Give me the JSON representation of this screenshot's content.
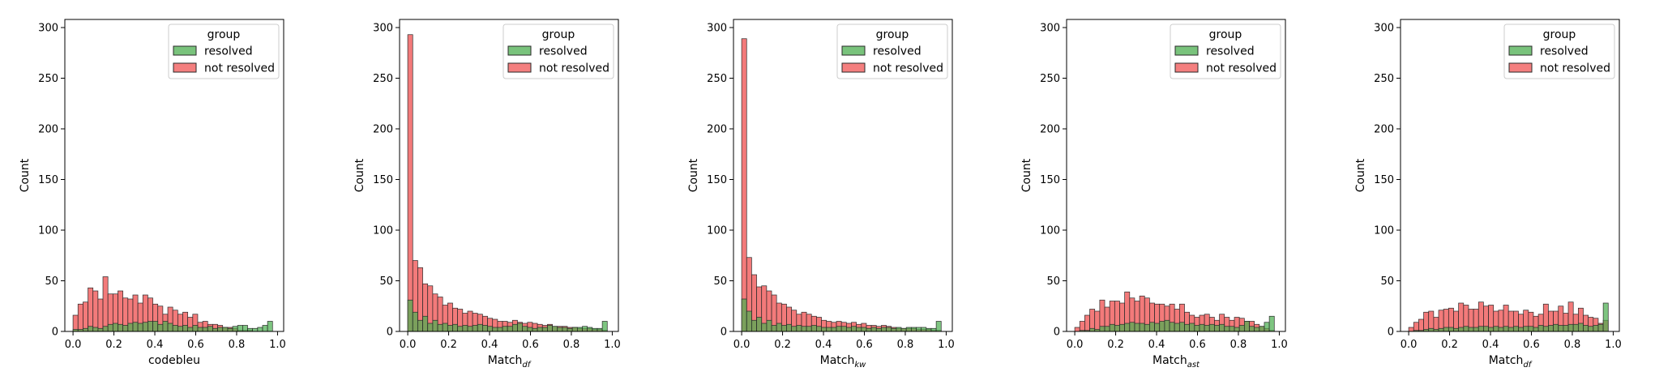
{
  "colors": {
    "resolved": "#4caf50",
    "not_resolved": "#f05454",
    "edge": "#2a2a2a"
  },
  "chart_data": [
    {
      "type": "histogram",
      "xlabel": "codebleu",
      "xlabel_sub": "",
      "ylabel": "Count",
      "xlim": [
        -0.04,
        1.03
      ],
      "ylim": [
        0,
        308
      ],
      "x_ticks": [
        0.0,
        0.2,
        0.4,
        0.6,
        0.8,
        1.0
      ],
      "x_tick_labels": [
        "0.0",
        "0.2",
        "0.4",
        "0.6",
        "0.8",
        "1.0"
      ],
      "y_ticks": [
        0,
        50,
        100,
        150,
        200,
        250,
        300
      ],
      "y_tick_labels": [
        "0",
        "50",
        "100",
        "150",
        "200",
        "250",
        "300"
      ],
      "bin_start": 0.0,
      "bin_width": 0.02439,
      "legend": {
        "title": "group",
        "placement": "top-right",
        "labels": [
          "resolved",
          "not resolved"
        ]
      },
      "series": [
        {
          "name": "not resolved",
          "key": "not_resolved",
          "values": [
            16,
            27,
            29,
            43,
            40,
            32,
            54,
            37,
            37,
            40,
            33,
            32,
            36,
            28,
            36,
            33,
            27,
            25,
            17,
            24,
            21,
            17,
            19,
            14,
            17,
            9,
            10,
            7,
            7,
            6,
            4,
            4,
            3,
            1,
            1,
            1,
            0,
            0,
            0,
            0
          ]
        },
        {
          "name": "resolved",
          "key": "resolved",
          "values": [
            2,
            2,
            3,
            5,
            4,
            3,
            5,
            7,
            8,
            7,
            6,
            8,
            9,
            8,
            9,
            10,
            10,
            7,
            10,
            8,
            6,
            5,
            6,
            4,
            6,
            4,
            4,
            5,
            3,
            4,
            4,
            3,
            5,
            6,
            6,
            3,
            3,
            4,
            6,
            10
          ]
        }
      ]
    },
    {
      "type": "histogram",
      "xlabel": "Match",
      "xlabel_sub": "df",
      "ylabel": "Count",
      "xlim": [
        -0.04,
        1.03
      ],
      "ylim": [
        0,
        308
      ],
      "x_ticks": [
        0.0,
        0.2,
        0.4,
        0.6,
        0.8,
        1.0
      ],
      "x_tick_labels": [
        "0.0",
        "0.2",
        "0.4",
        "0.6",
        "0.8",
        "1.0"
      ],
      "y_ticks": [
        0,
        50,
        100,
        150,
        200,
        250,
        300
      ],
      "y_tick_labels": [
        "0",
        "50",
        "100",
        "150",
        "200",
        "250",
        "300"
      ],
      "bin_start": 0.0,
      "bin_width": 0.02439,
      "legend": {
        "title": "group",
        "placement": "top-right",
        "labels": [
          "resolved",
          "not resolved"
        ]
      },
      "series": [
        {
          "name": "not resolved",
          "key": "not_resolved",
          "values": [
            293,
            70,
            63,
            47,
            45,
            37,
            34,
            26,
            28,
            23,
            22,
            18,
            20,
            18,
            17,
            15,
            13,
            12,
            10,
            10,
            9,
            11,
            9,
            8,
            9,
            8,
            7,
            6,
            7,
            5,
            5,
            5,
            4,
            4,
            3,
            3,
            3,
            2,
            2,
            1
          ]
        },
        {
          "name": "resolved",
          "key": "resolved",
          "values": [
            31,
            19,
            11,
            15,
            8,
            11,
            7,
            8,
            6,
            7,
            5,
            6,
            5,
            6,
            7,
            6,
            5,
            4,
            4,
            5,
            5,
            7,
            8,
            5,
            4,
            3,
            4,
            4,
            6,
            5,
            4,
            4,
            3,
            4,
            4,
            5,
            4,
            3,
            3,
            10
          ]
        }
      ]
    },
    {
      "type": "histogram",
      "xlabel": "Match",
      "xlabel_sub": "kw",
      "ylabel": "Count",
      "xlim": [
        -0.04,
        1.03
      ],
      "ylim": [
        0,
        308
      ],
      "x_ticks": [
        0.0,
        0.2,
        0.4,
        0.6,
        0.8,
        1.0
      ],
      "x_tick_labels": [
        "0.0",
        "0.2",
        "0.4",
        "0.6",
        "0.8",
        "1.0"
      ],
      "y_ticks": [
        0,
        50,
        100,
        150,
        200,
        250,
        300
      ],
      "y_tick_labels": [
        "0",
        "50",
        "100",
        "150",
        "200",
        "250",
        "300"
      ],
      "bin_start": 0.0,
      "bin_width": 0.02439,
      "legend": {
        "title": "group",
        "placement": "top-right",
        "labels": [
          "resolved",
          "not resolved"
        ]
      },
      "series": [
        {
          "name": "not resolved",
          "key": "not_resolved",
          "values": [
            289,
            73,
            56,
            44,
            45,
            40,
            36,
            28,
            27,
            24,
            21,
            17,
            19,
            17,
            15,
            14,
            11,
            10,
            9,
            10,
            9,
            8,
            9,
            7,
            8,
            6,
            6,
            5,
            6,
            5,
            4,
            3,
            3,
            3,
            3,
            2,
            2,
            2,
            1,
            1
          ]
        },
        {
          "name": "resolved",
          "key": "resolved",
          "values": [
            32,
            20,
            11,
            14,
            8,
            11,
            6,
            8,
            6,
            7,
            5,
            6,
            5,
            5,
            6,
            5,
            4,
            4,
            4,
            5,
            5,
            4,
            5,
            4,
            4,
            3,
            4,
            3,
            4,
            4,
            3,
            4,
            3,
            4,
            4,
            4,
            4,
            3,
            3,
            10
          ]
        }
      ]
    },
    {
      "type": "histogram",
      "xlabel": "Match",
      "xlabel_sub": "ast",
      "ylabel": "Count",
      "xlim": [
        -0.04,
        1.03
      ],
      "ylim": [
        0,
        308
      ],
      "x_ticks": [
        0.0,
        0.2,
        0.4,
        0.6,
        0.8,
        1.0
      ],
      "x_tick_labels": [
        "0.0",
        "0.2",
        "0.4",
        "0.6",
        "0.8",
        "1.0"
      ],
      "y_ticks": [
        0,
        50,
        100,
        150,
        200,
        250,
        300
      ],
      "y_tick_labels": [
        "0",
        "50",
        "100",
        "150",
        "200",
        "250",
        "300"
      ],
      "bin_start": 0.0,
      "bin_width": 0.02439,
      "legend": {
        "title": "group",
        "placement": "top-right",
        "labels": [
          "resolved",
          "not resolved"
        ]
      },
      "series": [
        {
          "name": "not resolved",
          "key": "not_resolved",
          "values": [
            4,
            10,
            16,
            22,
            20,
            31,
            24,
            30,
            30,
            28,
            39,
            33,
            30,
            35,
            33,
            28,
            27,
            27,
            25,
            27,
            22,
            27,
            19,
            16,
            14,
            16,
            17,
            14,
            11,
            17,
            14,
            11,
            14,
            13,
            10,
            10,
            7,
            5,
            3,
            1
          ]
        },
        {
          "name": "resolved",
          "key": "resolved",
          "values": [
            0,
            1,
            1,
            3,
            2,
            5,
            5,
            7,
            6,
            7,
            8,
            9,
            8,
            8,
            7,
            9,
            8,
            10,
            11,
            9,
            8,
            9,
            7,
            8,
            6,
            7,
            6,
            7,
            6,
            7,
            5,
            5,
            4,
            6,
            10,
            5,
            4,
            5,
            9,
            15
          ]
        }
      ]
    },
    {
      "type": "histogram",
      "xlabel": "Match",
      "xlabel_sub": "df",
      "ylabel": "Count",
      "xlim": [
        -0.04,
        1.03
      ],
      "ylim": [
        0,
        308
      ],
      "x_ticks": [
        0.0,
        0.2,
        0.4,
        0.6,
        0.8,
        1.0
      ],
      "x_tick_labels": [
        "0.0",
        "0.2",
        "0.4",
        "0.6",
        "0.8",
        "1.0"
      ],
      "y_ticks": [
        0,
        50,
        100,
        150,
        200,
        250,
        300
      ],
      "y_tick_labels": [
        "0",
        "50",
        "100",
        "150",
        "200",
        "250",
        "300"
      ],
      "bin_start": 0.0,
      "bin_width": 0.02439,
      "legend": {
        "title": "group",
        "placement": "top-right",
        "labels": [
          "resolved",
          "not resolved"
        ]
      },
      "series": [
        {
          "name": "not resolved",
          "key": "not_resolved",
          "values": [
            4,
            9,
            12,
            19,
            20,
            14,
            21,
            22,
            23,
            20,
            28,
            26,
            22,
            22,
            29,
            25,
            26,
            20,
            21,
            26,
            20,
            20,
            17,
            21,
            19,
            15,
            17,
            27,
            20,
            20,
            25,
            18,
            29,
            17,
            23,
            16,
            14,
            13,
            8,
            11
          ]
        },
        {
          "name": "resolved",
          "key": "resolved",
          "values": [
            0,
            1,
            1,
            2,
            3,
            2,
            3,
            4,
            4,
            3,
            4,
            5,
            4,
            4,
            5,
            5,
            4,
            5,
            4,
            5,
            4,
            5,
            4,
            5,
            5,
            4,
            6,
            5,
            6,
            7,
            6,
            6,
            7,
            7,
            8,
            6,
            5,
            6,
            7,
            28
          ]
        }
      ]
    }
  ]
}
